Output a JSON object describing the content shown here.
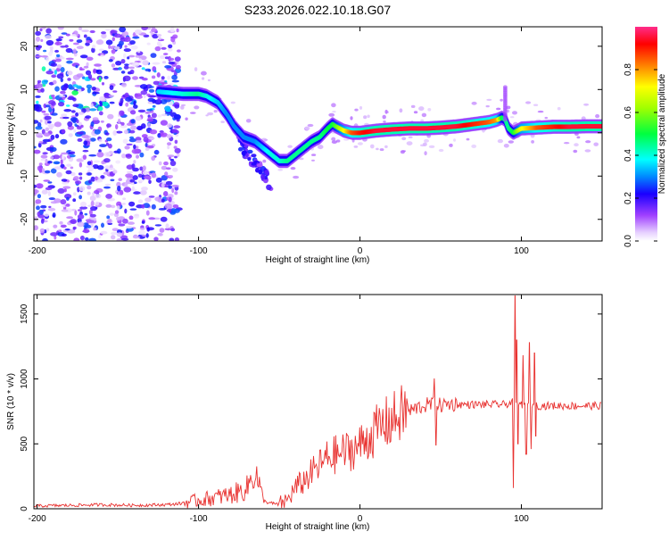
{
  "title": "S233.2026.022.10.18.G07",
  "chart_data": [
    {
      "type": "heatmap",
      "xlabel": "Height of straight line (km)",
      "ylabel": "Frequency (Hz)",
      "xlim": [
        -202,
        150
      ],
      "ylim": [
        -25,
        24.5
      ],
      "x_ticks": [
        -200,
        -100,
        0,
        100
      ],
      "x_tick_labels": [
        "-200",
        "-100",
        "0",
        "100"
      ],
      "y_ticks": [
        -20,
        -10,
        0,
        10,
        20
      ],
      "y_tick_labels": [
        "-20",
        "-10",
        "0",
        "10",
        "20"
      ],
      "colorbar": {
        "label": "Normalized spectral amplitude",
        "range": [
          0,
          1
        ],
        "ticks": [
          0,
          0.2,
          0.4,
          0.6,
          0.8
        ],
        "tick_labels": [
          "0.0",
          "0.2",
          "0.4",
          "0.6",
          "0.8"
        ]
      },
      "ridge": {
        "x": [
          -125,
          -110,
          -100,
          -95,
          -88,
          -82,
          -78,
          -72,
          -65,
          -60,
          -55,
          -50,
          -45,
          -40,
          -35,
          -30,
          -25,
          -20,
          -17,
          -15,
          -10,
          -5,
          0,
          10,
          20,
          30,
          40,
          50,
          60,
          70,
          80,
          85,
          88,
          90,
          92,
          95,
          100,
          110,
          120,
          130,
          140,
          150
        ],
        "y": [
          9.5,
          9,
          9,
          8.5,
          7,
          4,
          1.5,
          -1,
          -2,
          -3.5,
          -5,
          -6.5,
          -6.5,
          -5,
          -3.5,
          -2,
          -1,
          1,
          2,
          1.5,
          0.5,
          0,
          0,
          0.5,
          0.8,
          1,
          1,
          1.2,
          1.5,
          2,
          2.5,
          3,
          3.5,
          3,
          1,
          0,
          1,
          1.2,
          1.4,
          1.4,
          1.5,
          1.5
        ],
        "amplitude": [
          0.35,
          0.4,
          0.45,
          0.4,
          0.35,
          0.3,
          0.3,
          0.3,
          0.3,
          0.35,
          0.4,
          0.4,
          0.45,
          0.45,
          0.45,
          0.45,
          0.45,
          0.5,
          0.5,
          0.55,
          0.7,
          0.85,
          0.9,
          0.95,
          0.95,
          0.95,
          0.95,
          0.95,
          0.95,
          0.9,
          0.85,
          0.8,
          0.5,
          0.45,
          0.45,
          0.5,
          0.7,
          0.85,
          0.9,
          0.95,
          0.95,
          0.95
        ]
      }
    },
    {
      "type": "line",
      "xlabel": "Height of straight line (km)",
      "ylabel": "SNR (10 * v/v)",
      "xlim": [
        -202,
        150
      ],
      "ylim": [
        0,
        1650
      ],
      "x_ticks": [
        -200,
        -100,
        0,
        100
      ],
      "x_tick_labels": [
        "-200",
        "-100",
        "0",
        "100"
      ],
      "y_ticks": [
        0,
        500,
        1000,
        1500
      ],
      "y_tick_labels": [
        "0",
        "500",
        "1000",
        "1500"
      ],
      "series": [
        {
          "name": "SNR",
          "color": "#e8312f",
          "x": [
            -202,
            -180,
            -160,
            -140,
            -120,
            -110,
            -100,
            -90,
            -80,
            -75,
            -70,
            -65,
            -60,
            -55,
            -50,
            -45,
            -40,
            -35,
            -30,
            -25,
            -20,
            -15,
            -10,
            -5,
            0,
            5,
            10,
            15,
            20,
            25,
            30,
            35,
            40,
            45,
            50,
            55,
            60,
            70,
            80,
            90,
            95,
            100,
            105,
            110,
            120,
            130,
            140,
            150
          ],
          "values": [
            20,
            25,
            30,
            25,
            30,
            40,
            60,
            80,
            100,
            120,
            150,
            280,
            60,
            40,
            30,
            60,
            150,
            200,
            260,
            320,
            380,
            400,
            420,
            440,
            470,
            530,
            580,
            630,
            660,
            700,
            740,
            770,
            790,
            800,
            790,
            800,
            800,
            800,
            800,
            800,
            820,
            800,
            800,
            790,
            790,
            790,
            790,
            790
          ],
          "spikes": [
            {
              "x": 46,
              "value": 1000
            },
            {
              "x": 47,
              "value": 490
            },
            {
              "x": 95,
              "value": 160
            },
            {
              "x": 96,
              "value": 1640
            },
            {
              "x": 97,
              "value": 1300
            },
            {
              "x": 98,
              "value": 500
            },
            {
              "x": 101,
              "value": 1180
            },
            {
              "x": 103,
              "value": 420
            },
            {
              "x": 105,
              "value": 1280
            },
            {
              "x": 106,
              "value": 460
            },
            {
              "x": 108,
              "value": 1200
            },
            {
              "x": 109,
              "value": 560
            }
          ]
        }
      ]
    }
  ]
}
